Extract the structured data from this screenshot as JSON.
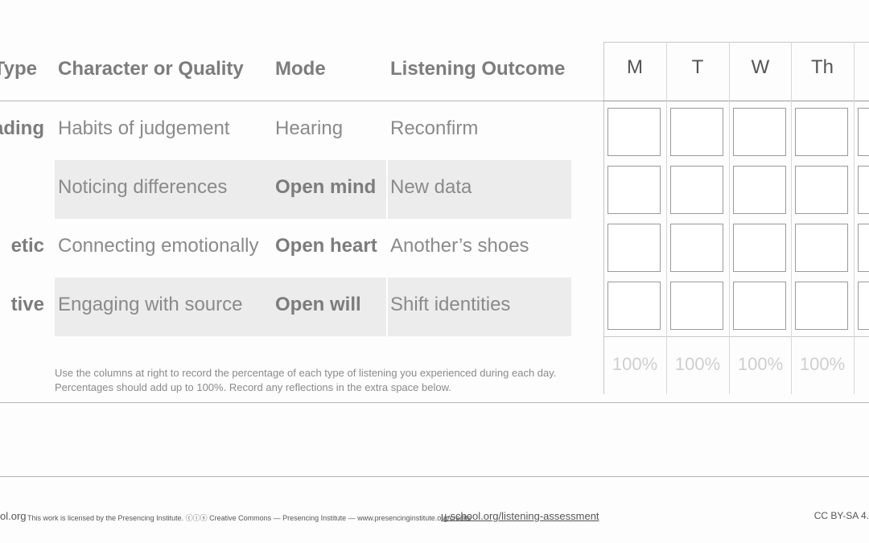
{
  "table": {
    "header": [
      "Type",
      "Character or Quality",
      "Mode",
      "Listening Outcome"
    ],
    "rows": [
      {
        "type": "ading",
        "quality": "Habits of judgement",
        "mode": "Hearing",
        "outcome": "Reconfirm"
      },
      {
        "quality": "Noticing differences",
        "mode": "Open mind",
        "outcome": "New data"
      },
      {
        "type": "etic",
        "quality": "Connecting emotionally",
        "mode": "Open heart",
        "outcome": "Another’s shoes"
      },
      {
        "type": "tive",
        "quality": "Engaging with source",
        "mode": "Open will",
        "outcome": "Shift identities"
      }
    ]
  },
  "tracker": {
    "days": [
      "M",
      "T",
      "W",
      "Th"
    ],
    "totals": [
      "100%",
      "100%",
      "100%",
      "100%"
    ]
  },
  "note": [
    "Use the columns at right to record the percentage of each type of listening you experienced during each day.",
    "Percentages should add up to 100%. Record any reflections in the extra space below."
  ],
  "footer": {
    "site": "ol.org",
    "license": "This work is licensed by the Presencing Institute. ⓒⓘⓢ Creative Commons — Presencing Institute — www.presencinginstitute.org/credits",
    "link": "u-school.org/listening-assessment",
    "cc": "CC BY-SA 4."
  }
}
